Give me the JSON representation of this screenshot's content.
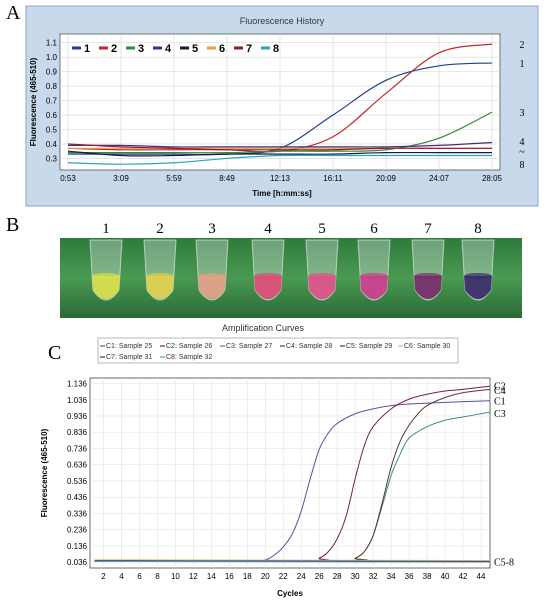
{
  "panels": {
    "a_letter": "A",
    "b_letter": "B",
    "c_letter": "C"
  },
  "chart_data": [
    {
      "type": "line",
      "title": "Fluorescence History",
      "xlabel": "Time [h:mm:ss]",
      "ylabel": "Fluorescence (465-510)",
      "x_ticks": [
        "0:53",
        "3:09",
        "5:59",
        "8:49",
        "12:13",
        "16:11",
        "20:09",
        "24:07",
        "28:05"
      ],
      "y_ticks": [
        0.3,
        0.4,
        0.5,
        0.6,
        0.7,
        0.8,
        0.9,
        1.0,
        1.1
      ],
      "ylim": [
        0.22,
        1.16
      ],
      "grid": true,
      "legend_position": "top-left",
      "series": [
        {
          "name": "1",
          "color": "#1f3f8f",
          "values": [
            0.33,
            0.33,
            0.33,
            0.33,
            0.37,
            0.6,
            0.84,
            0.94,
            0.96
          ]
        },
        {
          "name": "2",
          "color": "#c0272d",
          "values": [
            0.37,
            0.36,
            0.36,
            0.36,
            0.35,
            0.45,
            0.75,
            1.03,
            1.09
          ]
        },
        {
          "name": "3",
          "color": "#2e8b3a",
          "values": [
            0.34,
            0.34,
            0.34,
            0.34,
            0.35,
            0.35,
            0.36,
            0.44,
            0.62
          ]
        },
        {
          "name": "4",
          "color": "#4b2c7a",
          "values": [
            0.39,
            0.39,
            0.38,
            0.38,
            0.38,
            0.38,
            0.38,
            0.39,
            0.41
          ]
        },
        {
          "name": "5",
          "color": "#1a1a3a",
          "values": [
            0.35,
            0.32,
            0.32,
            0.33,
            0.33,
            0.33,
            0.34,
            0.34,
            0.34
          ]
        },
        {
          "name": "6",
          "color": "#e6a23c",
          "values": [
            0.37,
            0.37,
            0.37,
            0.37,
            0.37,
            0.37,
            0.37,
            0.37,
            0.37
          ]
        },
        {
          "name": "7",
          "color": "#8b1a2a",
          "values": [
            0.4,
            0.38,
            0.37,
            0.36,
            0.36,
            0.36,
            0.37,
            0.37,
            0.37
          ]
        },
        {
          "name": "8",
          "color": "#2aa5b8",
          "values": [
            0.27,
            0.26,
            0.27,
            0.3,
            0.32,
            0.32,
            0.32,
            0.32,
            0.32
          ]
        }
      ],
      "end_labels": [
        "2",
        "1",
        "3",
        "4",
        "~",
        "8"
      ]
    },
    {
      "type": "line",
      "title": "Amplification Curves",
      "xlabel": "Cycles",
      "ylabel": "Fluorescence (465-510)",
      "x_ticks": [
        2,
        4,
        6,
        8,
        10,
        12,
        14,
        16,
        18,
        20,
        22,
        24,
        26,
        28,
        30,
        32,
        34,
        36,
        38,
        40,
        42,
        44
      ],
      "y_ticks": [
        "0.036",
        "0.136",
        "0.236",
        "0.336",
        "0.436",
        "0.536",
        "0.636",
        "0.736",
        "0.836",
        "0.936",
        "1.036",
        "1.136"
      ],
      "xlim": [
        0.5,
        45
      ],
      "ylim": [
        0.0,
        1.17
      ],
      "grid": true,
      "legend_position": "top",
      "series": [
        {
          "name": "C1: Sample 25",
          "color": "#5b4fa0",
          "x": [
            1,
            18,
            20,
            21,
            22,
            23,
            24,
            25,
            26,
            27,
            28,
            30,
            32,
            34,
            36,
            40,
            45
          ],
          "values": [
            0.046,
            0.046,
            0.05,
            0.08,
            0.13,
            0.21,
            0.35,
            0.55,
            0.73,
            0.83,
            0.89,
            0.95,
            0.98,
            1.0,
            1.01,
            1.02,
            1.03
          ]
        },
        {
          "name": "C2: Sample 26",
          "color": "#7a1f3a",
          "x": [
            1,
            25,
            26,
            27,
            28,
            29,
            30,
            31,
            32,
            34,
            36,
            38,
            40,
            42,
            45
          ],
          "values": [
            0.046,
            0.046,
            0.06,
            0.1,
            0.18,
            0.32,
            0.55,
            0.75,
            0.87,
            0.98,
            1.04,
            1.07,
            1.09,
            1.1,
            1.12
          ]
        },
        {
          "name": "C3: Sample 27",
          "color": "#3a8c8a",
          "x": [
            1,
            29,
            30,
            31,
            32,
            33,
            34,
            35,
            36,
            38,
            40,
            42,
            45
          ],
          "values": [
            0.046,
            0.046,
            0.06,
            0.1,
            0.2,
            0.38,
            0.57,
            0.7,
            0.8,
            0.87,
            0.91,
            0.93,
            0.96
          ]
        },
        {
          "name": "C4: Sample 28",
          "color": "#5a3a2a",
          "x": [
            1,
            29,
            30,
            31,
            32,
            33,
            34,
            35,
            36,
            37,
            38,
            40,
            42,
            45
          ],
          "values": [
            0.046,
            0.046,
            0.06,
            0.1,
            0.2,
            0.4,
            0.62,
            0.78,
            0.88,
            0.95,
            1.0,
            1.05,
            1.08,
            1.1
          ]
        },
        {
          "name": "C5: Sample 29",
          "color": "#2a3f8f",
          "x": [
            1,
            45
          ],
          "values": [
            0.046,
            0.042
          ]
        },
        {
          "name": "C6: Sample 30",
          "color": "#d9b36a",
          "x": [
            1,
            45
          ],
          "values": [
            0.05,
            0.046
          ]
        },
        {
          "name": "C7: Sample 31",
          "color": "#4a2a5a",
          "x": [
            1,
            45
          ],
          "values": [
            0.044,
            0.04
          ]
        },
        {
          "name": "C8: Sample 32",
          "color": "#4aa0c8",
          "x": [
            1,
            45
          ],
          "values": [
            0.04,
            0.036
          ]
        }
      ],
      "end_labels": [
        "C2",
        "C4",
        "C1",
        "C3",
        "C5-8"
      ]
    }
  ],
  "photo": {
    "tube_labels": [
      "1",
      "2",
      "3",
      "4",
      "5",
      "6",
      "7",
      "8"
    ],
    "tube_colors": [
      "#d9e04a",
      "#e3d24a",
      "#e6a088",
      "#e04a78",
      "#e0508a",
      "#cc3c8c",
      "#7a2a6a",
      "#3a2a6a"
    ],
    "background": "#3a8a4a"
  }
}
